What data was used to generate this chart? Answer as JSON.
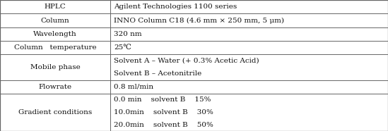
{
  "rows": [
    {
      "label": "HPLC",
      "value": "Agilent Technologies 1100 series",
      "nlines": 1
    },
    {
      "label": "Column",
      "value": "INNO Column C18 (4.6 mm × 250 mm, 5 μm)",
      "nlines": 1
    },
    {
      "label": "Wavelength",
      "value": "320 nm",
      "nlines": 1
    },
    {
      "label": "Column   temperature",
      "value": "25℃",
      "nlines": 1
    },
    {
      "label": "Mobile phase",
      "value_lines": [
        "Solvent A – Water (+ 0.3% Acetic Acid)",
        "Solvent B – Acetonitrile"
      ],
      "nlines": 2
    },
    {
      "label": "Flowrate",
      "value": "0.8 ml/min",
      "nlines": 1
    },
    {
      "label": "Gradient conditions",
      "value_lines": [
        "0.0 min    solvent B    15%",
        "10.0min    solvent B    30%",
        "20.0min    solvent B    50%"
      ],
      "nlines": 3
    }
  ],
  "col_split": 0.285,
  "background": "#ffffff",
  "border_color": "#666666",
  "text_color": "#111111",
  "font_size": 7.5
}
